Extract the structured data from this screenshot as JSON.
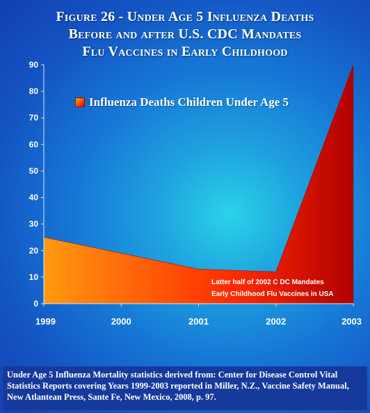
{
  "title_lines": [
    "Figure 26 - Under Age 5 Influenza Deaths",
    "Before and after U.S. CDC Mandates",
    "Flu Vaccines in Early Childhood"
  ],
  "legend_label": "Influenza Deaths Children Under Age 5",
  "annotation_lines": [
    "Latter half of 2002 C DC Mandates",
    "Early Childhood Flu Vaccines in USA"
  ],
  "source_note": "Under Age 5 Influenza Mortality statistics derived from: Center for Disease Control Vital Statistics Reports covering Years 1999-2003 reported in Miller, N.Z., Vaccine Safety Manual, New Atlantean Press,  Sante Fe, New Mexico, 2008, p. 97.",
  "colors": {
    "area_start": "#ff9a10",
    "area_mid": "#ff2a00",
    "area_end": "#b00000",
    "background": "#1677d6",
    "text": "#ffffff"
  },
  "chart_data": {
    "type": "area",
    "categories": [
      "1999",
      "2000",
      "2001",
      "2002",
      "2003"
    ],
    "series": [
      {
        "name": "Influenza Deaths Children Under Age 5",
        "values": [
          25,
          19,
          13,
          12,
          90
        ]
      }
    ],
    "ylim": [
      0,
      90
    ],
    "yticks": [
      0,
      10,
      20,
      30,
      40,
      50,
      60,
      70,
      80,
      90
    ],
    "grid": false,
    "legend_position": "top-left"
  }
}
